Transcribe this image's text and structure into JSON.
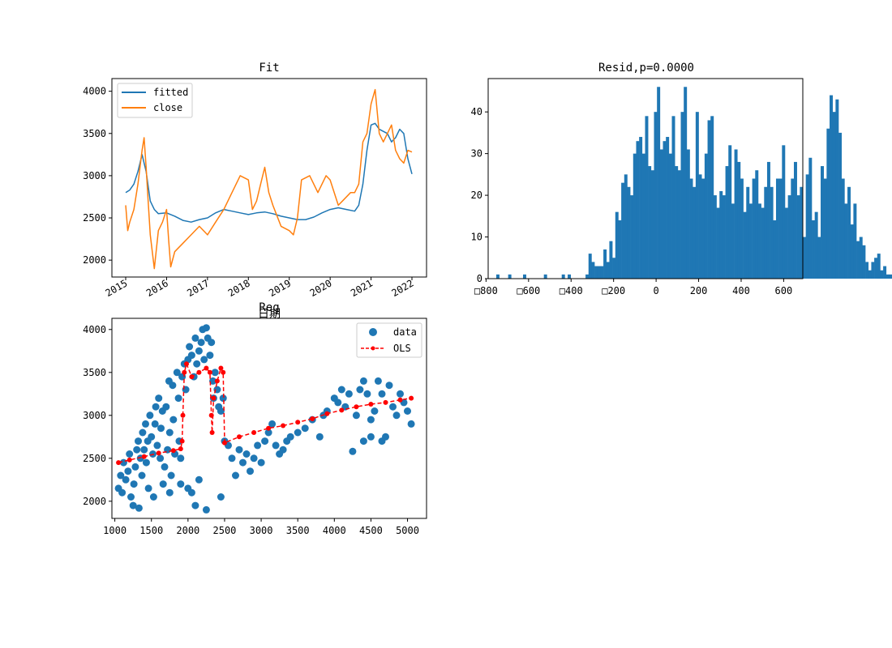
{
  "colors": {
    "fitted": "#1f77b4",
    "close": "#ff7f0e",
    "hist": "#1f77b4",
    "data": "#1f77b4",
    "ols": "#ff0000"
  },
  "chart_data": [
    {
      "id": "fit",
      "type": "line",
      "title": "Fit",
      "legend_placement": "upper-left",
      "xticks": [
        "2015",
        "2016",
        "2017",
        "2018",
        "2019",
        "2020",
        "2021",
        "2022"
      ],
      "ylim": [
        1800,
        4150
      ],
      "yticks": [
        2000,
        2500,
        3000,
        3500,
        4000
      ],
      "ytick_labels": [
        "2000",
        "2500",
        "3000",
        "3500",
        "4000"
      ],
      "series": [
        {
          "name": "fitted",
          "x": [
            2015.0,
            2015.1,
            2015.2,
            2015.3,
            2015.4,
            2015.5,
            2015.6,
            2015.7,
            2015.8,
            2016.0,
            2016.2,
            2016.4,
            2016.6,
            2016.8,
            2017.0,
            2017.2,
            2017.4,
            2017.6,
            2017.8,
            2018.0,
            2018.2,
            2018.4,
            2018.6,
            2018.8,
            2019.0,
            2019.2,
            2019.4,
            2019.6,
            2019.8,
            2020.0,
            2020.2,
            2020.4,
            2020.6,
            2020.7,
            2020.8,
            2020.9,
            2021.0,
            2021.1,
            2021.2,
            2021.4,
            2021.5,
            2021.6,
            2021.7,
            2021.8,
            2021.9,
            2022.0
          ],
          "y": [
            2800,
            2830,
            2900,
            3050,
            3250,
            3050,
            2700,
            2600,
            2550,
            2560,
            2520,
            2470,
            2450,
            2480,
            2500,
            2560,
            2600,
            2580,
            2560,
            2540,
            2560,
            2570,
            2550,
            2520,
            2500,
            2480,
            2480,
            2510,
            2560,
            2600,
            2620,
            2600,
            2580,
            2650,
            2900,
            3300,
            3600,
            3620,
            3550,
            3500,
            3400,
            3450,
            3550,
            3500,
            3200,
            3020
          ]
        },
        {
          "name": "close",
          "x": [
            2015.0,
            2015.05,
            2015.1,
            2015.2,
            2015.3,
            2015.4,
            2015.45,
            2015.5,
            2015.55,
            2015.6,
            2015.7,
            2015.8,
            2015.9,
            2016.0,
            2016.05,
            2016.1,
            2016.2,
            2016.4,
            2016.6,
            2016.8,
            2017.0,
            2017.2,
            2017.4,
            2017.6,
            2017.8,
            2018.0,
            2018.1,
            2018.2,
            2018.3,
            2018.4,
            2018.5,
            2018.6,
            2018.8,
            2019.0,
            2019.1,
            2019.2,
            2019.3,
            2019.5,
            2019.7,
            2019.9,
            2020.0,
            2020.2,
            2020.3,
            2020.5,
            2020.6,
            2020.7,
            2020.8,
            2020.9,
            2021.0,
            2021.1,
            2021.2,
            2021.3,
            2021.5,
            2021.6,
            2021.7,
            2021.8,
            2021.9,
            2022.0
          ],
          "y": [
            2650,
            2350,
            2450,
            2600,
            2900,
            3300,
            3450,
            3100,
            2700,
            2300,
            1900,
            2350,
            2450,
            2600,
            2250,
            1920,
            2100,
            2200,
            2300,
            2400,
            2300,
            2450,
            2600,
            2800,
            3000,
            2950,
            2600,
            2700,
            2900,
            3100,
            2800,
            2650,
            2400,
            2350,
            2300,
            2500,
            2950,
            3000,
            2800,
            3000,
            2950,
            2650,
            2700,
            2800,
            2800,
            2900,
            3400,
            3500,
            3850,
            4020,
            3500,
            3400,
            3600,
            3300,
            3200,
            3150,
            3300,
            3280
          ]
        }
      ]
    },
    {
      "id": "resid",
      "type": "bar",
      "title": "Resid,p=0.0000",
      "xlim": [
        -790,
        690
      ],
      "xticks": [
        -800,
        -600,
        -400,
        -200,
        0,
        200,
        400,
        600
      ],
      "xtick_labels": [
        "□800",
        "□600",
        "□400",
        "□200",
        "0",
        "200",
        "400",
        "600"
      ],
      "ylim": [
        0,
        48
      ],
      "yticks": [
        0,
        10,
        20,
        30,
        40
      ],
      "ytick_labels": [
        "0",
        "10",
        "20",
        "30",
        "40"
      ],
      "bin_start": -780,
      "bin_width": 14,
      "values": [
        0,
        0,
        1,
        0,
        0,
        0,
        1,
        0,
        0,
        0,
        0,
        1,
        0,
        0,
        0,
        0,
        0,
        0,
        1,
        0,
        0,
        0,
        0,
        0,
        1,
        0,
        1,
        0,
        0,
        0,
        0,
        0,
        1,
        6,
        4,
        3,
        3,
        3,
        7,
        4,
        9,
        5,
        16,
        14,
        23,
        25,
        22,
        20,
        30,
        33,
        34,
        30,
        39,
        27,
        26,
        40,
        46,
        31,
        33,
        34,
        30,
        39,
        27,
        26,
        40,
        46,
        31,
        24,
        22,
        40,
        25,
        24,
        30,
        38,
        39,
        20,
        17,
        21,
        20,
        27,
        32,
        18,
        31,
        28,
        24,
        16,
        22,
        18,
        24,
        26,
        18,
        17,
        22,
        28,
        22,
        14,
        24,
        24,
        32,
        17,
        20,
        24,
        28,
        20,
        22,
        10,
        25,
        29,
        14,
        16,
        10,
        27,
        24,
        36,
        44,
        40,
        43,
        35,
        24,
        18,
        22,
        13,
        18,
        9,
        10,
        8,
        4,
        2,
        4,
        5,
        6,
        2,
        3,
        1,
        1,
        0,
        1,
        2,
        2,
        2,
        1,
        1,
        1,
        2
      ]
    },
    {
      "id": "reg",
      "type": "scatter",
      "title": "Reg",
      "title_overlap_text": "日期",
      "legend_placement": "upper-right",
      "xlim": [
        960,
        5260
      ],
      "xticks": [
        1000,
        1500,
        2000,
        2500,
        3000,
        3500,
        4000,
        4500,
        5000
      ],
      "xtick_labels": [
        "1000",
        "1500",
        "2000",
        "2500",
        "3000",
        "3500",
        "4000",
        "4500",
        "5000"
      ],
      "ylim": [
        1800,
        4130
      ],
      "yticks": [
        2000,
        2500,
        3000,
        3500,
        4000
      ],
      "ytick_labels": [
        "2000",
        "2500",
        "3000",
        "3500",
        "4000"
      ],
      "series": [
        {
          "name": "data",
          "points": [
            [
              1050,
              2150
            ],
            [
              1080,
              2300
            ],
            [
              1100,
              2100
            ],
            [
              1120,
              2450
            ],
            [
              1150,
              2250
            ],
            [
              1180,
              2350
            ],
            [
              1200,
              2550
            ],
            [
              1220,
              2050
            ],
            [
              1250,
              1950
            ],
            [
              1260,
              2200
            ],
            [
              1280,
              2400
            ],
            [
              1300,
              2600
            ],
            [
              1320,
              2700
            ],
            [
              1330,
              1920
            ],
            [
              1350,
              2500
            ],
            [
              1370,
              2300
            ],
            [
              1380,
              2800
            ],
            [
              1400,
              2600
            ],
            [
              1420,
              2900
            ],
            [
              1430,
              2450
            ],
            [
              1450,
              2700
            ],
            [
              1460,
              2150
            ],
            [
              1480,
              3000
            ],
            [
              1500,
              2750
            ],
            [
              1520,
              2550
            ],
            [
              1530,
              2050
            ],
            [
              1550,
              2900
            ],
            [
              1560,
              3100
            ],
            [
              1580,
              2650
            ],
            [
              1600,
              3200
            ],
            [
              1620,
              2500
            ],
            [
              1630,
              2850
            ],
            [
              1650,
              3050
            ],
            [
              1660,
              2200
            ],
            [
              1680,
              2400
            ],
            [
              1700,
              3100
            ],
            [
              1720,
              2600
            ],
            [
              1740,
              3400
            ],
            [
              1750,
              2800
            ],
            [
              1770,
              2300
            ],
            [
              1790,
              3350
            ],
            [
              1800,
              2950
            ],
            [
              1820,
              2550
            ],
            [
              1850,
              3500
            ],
            [
              1870,
              3200
            ],
            [
              1880,
              2700
            ],
            [
              1900,
              2500
            ],
            [
              1920,
              3450
            ],
            [
              1950,
              3600
            ],
            [
              1970,
              3300
            ],
            [
              2000,
              3650
            ],
            [
              2020,
              3800
            ],
            [
              2050,
              3700
            ],
            [
              2080,
              3450
            ],
            [
              2100,
              3900
            ],
            [
              2120,
              3600
            ],
            [
              2150,
              3750
            ],
            [
              2180,
              3850
            ],
            [
              2200,
              4000
            ],
            [
              2220,
              3650
            ],
            [
              2250,
              4020
            ],
            [
              2270,
              3900
            ],
            [
              2300,
              3700
            ],
            [
              2320,
              3850
            ],
            [
              2340,
              3400
            ],
            [
              2350,
              3200
            ],
            [
              2370,
              3500
            ],
            [
              2400,
              3300
            ],
            [
              2420,
              3100
            ],
            [
              2450,
              3050
            ],
            [
              2480,
              3200
            ],
            [
              2500,
              2700
            ],
            [
              2550,
              2650
            ],
            [
              2600,
              2500
            ],
            [
              2650,
              2300
            ],
            [
              2700,
              2600
            ],
            [
              2750,
              2450
            ],
            [
              2800,
              2550
            ],
            [
              2850,
              2350
            ],
            [
              2900,
              2500
            ],
            [
              2950,
              2650
            ],
            [
              3000,
              2450
            ],
            [
              3050,
              2700
            ],
            [
              3100,
              2800
            ],
            [
              3150,
              2900
            ],
            [
              3200,
              2650
            ],
            [
              3250,
              2550
            ],
            [
              3300,
              2600
            ],
            [
              3350,
              2700
            ],
            [
              3400,
              2750
            ],
            [
              3500,
              2800
            ],
            [
              3600,
              2850
            ],
            [
              3700,
              2950
            ],
            [
              3800,
              2750
            ],
            [
              3850,
              3000
            ],
            [
              3900,
              3050
            ],
            [
              4000,
              3200
            ],
            [
              4050,
              3150
            ],
            [
              4100,
              3300
            ],
            [
              4150,
              3100
            ],
            [
              4200,
              3250
            ],
            [
              4250,
              2580
            ],
            [
              4300,
              3000
            ],
            [
              4350,
              3300
            ],
            [
              4400,
              3400
            ],
            [
              4450,
              3250
            ],
            [
              4500,
              2950
            ],
            [
              4550,
              3050
            ],
            [
              4600,
              3400
            ],
            [
              4650,
              3250
            ],
            [
              4700,
              2750
            ],
            [
              4750,
              3350
            ],
            [
              4800,
              3100
            ],
            [
              4850,
              3000
            ],
            [
              4900,
              3250
            ],
            [
              4950,
              3150
            ],
            [
              5000,
              3050
            ],
            [
              5050,
              2900
            ],
            [
              2000,
              2150
            ],
            [
              2050,
              2100
            ],
            [
              2100,
              1950
            ],
            [
              2150,
              2250
            ],
            [
              2250,
              1900
            ],
            [
              1900,
              2200
            ],
            [
              1750,
              2100
            ],
            [
              2450,
              2050
            ],
            [
              4400,
              2700
            ],
            [
              4500,
              2750
            ],
            [
              4650,
              2700
            ]
          ]
        },
        {
          "name": "OLS",
          "points": [
            [
              1050,
              2450
            ],
            [
              1200,
              2480
            ],
            [
              1400,
              2520
            ],
            [
              1600,
              2560
            ],
            [
              1800,
              2590
            ],
            [
              1900,
              2610
            ],
            [
              1920,
              2700
            ],
            [
              1930,
              3000
            ],
            [
              1950,
              3500
            ],
            [
              1980,
              3600
            ],
            [
              2050,
              3450
            ],
            [
              2150,
              3500
            ],
            [
              2250,
              3550
            ],
            [
              2300,
              3500
            ],
            [
              2320,
              3000
            ],
            [
              2330,
              2800
            ],
            [
              2350,
              3200
            ],
            [
              2400,
              3400
            ],
            [
              2450,
              3550
            ],
            [
              2480,
              3500
            ],
            [
              2500,
              2680
            ],
            [
              2700,
              2750
            ],
            [
              2900,
              2800
            ],
            [
              3100,
              2850
            ],
            [
              3300,
              2880
            ],
            [
              3500,
              2920
            ],
            [
              3700,
              2960
            ],
            [
              3900,
              3020
            ],
            [
              4100,
              3060
            ],
            [
              4300,
              3100
            ],
            [
              4500,
              3130
            ],
            [
              4700,
              3150
            ],
            [
              4900,
              3180
            ],
            [
              5050,
              3200
            ]
          ]
        }
      ]
    }
  ]
}
